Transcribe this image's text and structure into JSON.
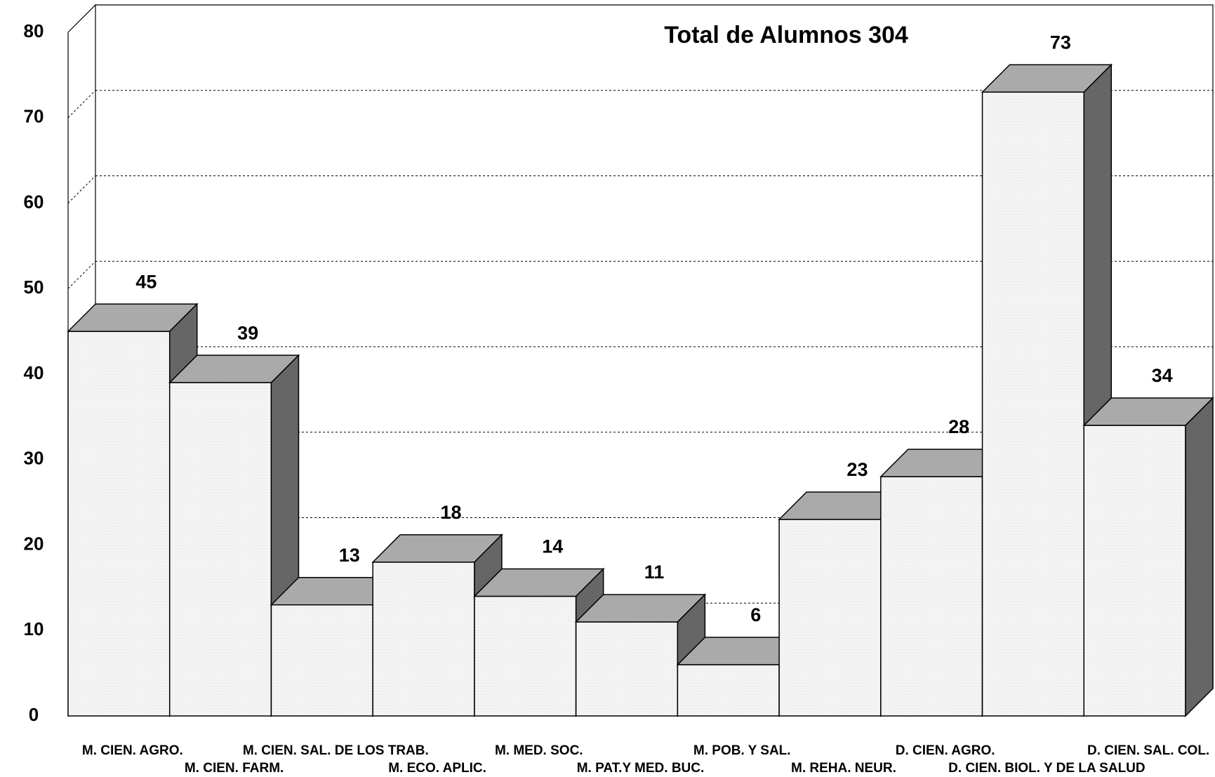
{
  "chart_data": {
    "type": "bar3d",
    "title": "Total de Alumnos 304",
    "categories": [
      "M. CIEN. AGRO.",
      "M. CIEN. FARM.",
      "M. CIEN. SAL. DE LOS TRAB.",
      "M. ECO. APLIC.",
      "M. MED. SOC.",
      "M. PAT.Y MED. BUC.",
      "M. POB. Y SAL.",
      "M. REHA. NEUR.",
      "D. CIEN. AGRO.",
      "D. CIEN. BIOL. Y DE LA SALUD",
      "D. CIEN. SAL. COL."
    ],
    "values": [
      45,
      39,
      13,
      18,
      14,
      11,
      6,
      23,
      28,
      73,
      34
    ],
    "ylim": [
      0,
      80
    ],
    "yticks": [
      0,
      10,
      20,
      30,
      40,
      50,
      60,
      70,
      80
    ],
    "grid": true,
    "color": "#f3f3f3"
  }
}
